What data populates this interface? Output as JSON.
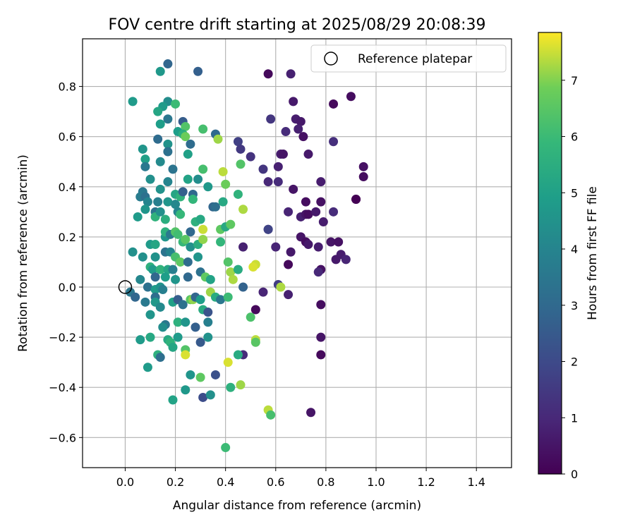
{
  "chart_data": {
    "type": "scatter",
    "title": "FOV centre drift starting at 2025/08/29 20:08:39",
    "xlabel": "Angular distance from reference (arcmin)",
    "ylabel": "Rotation from reference (arcmin)",
    "xlim": [
      -0.17,
      1.54
    ],
    "ylim": [
      -0.72,
      0.99
    ],
    "xticks": [
      0.0,
      0.2,
      0.4,
      0.6,
      0.8,
      1.0,
      1.2,
      1.4
    ],
    "xtick_labels": [
      "0.0",
      "0.2",
      "0.4",
      "0.6",
      "0.8",
      "1.0",
      "1.2",
      "1.4"
    ],
    "yticks": [
      -0.6,
      -0.4,
      -0.2,
      0.0,
      0.2,
      0.4,
      0.6,
      0.8
    ],
    "ytick_labels": [
      "−0.6",
      "−0.4",
      "−0.2",
      "0.0",
      "0.2",
      "0.4",
      "0.6",
      "0.8"
    ],
    "grid": true,
    "legend": {
      "placement": "top-right",
      "label": "Reference platepar"
    },
    "reference_point": {
      "x": 0.0,
      "y": 0.0
    },
    "colorbar": {
      "label": "Hours from first FF file",
      "min": 0,
      "max": 7.85,
      "ticks": [
        0,
        1,
        2,
        3,
        4,
        5,
        6,
        7
      ],
      "tick_labels": [
        "0",
        "1",
        "2",
        "3",
        "4",
        "5",
        "6",
        "7"
      ],
      "colormap": "viridis"
    },
    "points": [
      {
        "x": 0.57,
        "y": 0.85,
        "h": 0.2
      },
      {
        "x": 0.66,
        "y": 0.85,
        "h": 0.8
      },
      {
        "x": 0.9,
        "y": 0.76,
        "h": 0.3
      },
      {
        "x": 0.67,
        "y": 0.74,
        "h": 0.6
      },
      {
        "x": 0.83,
        "y": 0.73,
        "h": 0.2
      },
      {
        "x": 0.58,
        "y": 0.67,
        "h": 1.4
      },
      {
        "x": 0.68,
        "y": 0.67,
        "h": 0.7
      },
      {
        "x": 0.7,
        "y": 0.66,
        "h": 0.6
      },
      {
        "x": 0.64,
        "y": 0.62,
        "h": 1.1
      },
      {
        "x": 0.69,
        "y": 0.63,
        "h": 0.8
      },
      {
        "x": 0.71,
        "y": 0.6,
        "h": 0.4
      },
      {
        "x": 0.83,
        "y": 0.58,
        "h": 1.2
      },
      {
        "x": 0.62,
        "y": 0.53,
        "h": 0.7
      },
      {
        "x": 0.63,
        "y": 0.53,
        "h": 0.5
      },
      {
        "x": 0.73,
        "y": 0.53,
        "h": 0.6
      },
      {
        "x": 0.5,
        "y": 0.52,
        "h": 1.3
      },
      {
        "x": 0.45,
        "y": 0.58,
        "h": 1.7
      },
      {
        "x": 0.46,
        "y": 0.55,
        "h": 1.5
      },
      {
        "x": 0.55,
        "y": 0.47,
        "h": 1.4
      },
      {
        "x": 0.61,
        "y": 0.48,
        "h": 0.8
      },
      {
        "x": 0.95,
        "y": 0.48,
        "h": 0.4
      },
      {
        "x": 0.95,
        "y": 0.44,
        "h": 0.3
      },
      {
        "x": 0.57,
        "y": 0.42,
        "h": 1.0
      },
      {
        "x": 0.61,
        "y": 0.42,
        "h": 1.1
      },
      {
        "x": 0.78,
        "y": 0.42,
        "h": 0.7
      },
      {
        "x": 0.67,
        "y": 0.39,
        "h": 0.5
      },
      {
        "x": 0.92,
        "y": 0.35,
        "h": 0.2
      },
      {
        "x": 0.92,
        "y": 0.35,
        "h": 0.0
      },
      {
        "x": 0.72,
        "y": 0.34,
        "h": 0.3
      },
      {
        "x": 0.78,
        "y": 0.34,
        "h": 0.4
      },
      {
        "x": 0.65,
        "y": 0.3,
        "h": 0.9
      },
      {
        "x": 0.7,
        "y": 0.28,
        "h": 0.8
      },
      {
        "x": 0.72,
        "y": 0.29,
        "h": 0.5
      },
      {
        "x": 0.73,
        "y": 0.29,
        "h": 0.3
      },
      {
        "x": 0.76,
        "y": 0.3,
        "h": 0.6
      },
      {
        "x": 0.83,
        "y": 0.3,
        "h": 1.1
      },
      {
        "x": 0.79,
        "y": 0.26,
        "h": 0.7
      },
      {
        "x": 0.57,
        "y": 0.23,
        "h": 1.5
      },
      {
        "x": 0.57,
        "y": 0.23,
        "h": 1.8
      },
      {
        "x": 0.7,
        "y": 0.2,
        "h": 0.5
      },
      {
        "x": 0.72,
        "y": 0.18,
        "h": 0.3
      },
      {
        "x": 0.73,
        "y": 0.17,
        "h": 0.6
      },
      {
        "x": 0.82,
        "y": 0.18,
        "h": 0.5
      },
      {
        "x": 0.85,
        "y": 0.18,
        "h": 0.4
      },
      {
        "x": 0.86,
        "y": 0.13,
        "h": 0.7
      },
      {
        "x": 0.84,
        "y": 0.11,
        "h": 0.6
      },
      {
        "x": 0.88,
        "y": 0.11,
        "h": 0.9
      },
      {
        "x": 0.6,
        "y": 0.16,
        "h": 0.9
      },
      {
        "x": 0.66,
        "y": 0.14,
        "h": 0.6
      },
      {
        "x": 0.65,
        "y": 0.09,
        "h": 0.2
      },
      {
        "x": 0.77,
        "y": 0.16,
        "h": 0.7
      },
      {
        "x": 0.78,
        "y": 0.07,
        "h": 0.4
      },
      {
        "x": 0.77,
        "y": 0.06,
        "h": 1.0
      },
      {
        "x": 0.47,
        "y": 0.16,
        "h": 0.8
      },
      {
        "x": 0.61,
        "y": 0.01,
        "h": 1.6
      },
      {
        "x": 0.55,
        "y": -0.02,
        "h": 0.9
      },
      {
        "x": 0.65,
        "y": -0.03,
        "h": 0.8
      },
      {
        "x": 0.52,
        "y": -0.09,
        "h": 0.2
      },
      {
        "x": 0.78,
        "y": -0.07,
        "h": 0.3
      },
      {
        "x": 0.78,
        "y": -0.2,
        "h": 0.5
      },
      {
        "x": 0.78,
        "y": -0.27,
        "h": 0.2
      },
      {
        "x": 0.47,
        "y": -0.27,
        "h": 1.1
      },
      {
        "x": 0.74,
        "y": -0.5,
        "h": 0.5
      },
      {
        "x": 0.47,
        "y": 0.0,
        "h": 2.8
      },
      {
        "x": 0.36,
        "y": -0.35,
        "h": 2.2
      },
      {
        "x": 0.31,
        "y": -0.44,
        "h": 2.1
      },
      {
        "x": 0.17,
        "y": 0.89,
        "h": 2.9
      },
      {
        "x": 0.29,
        "y": 0.86,
        "h": 2.7
      },
      {
        "x": 0.14,
        "y": 0.86,
        "h": 4.7
      },
      {
        "x": 0.03,
        "y": 0.74,
        "h": 4.8
      },
      {
        "x": 0.17,
        "y": 0.74,
        "h": 4.3
      },
      {
        "x": 0.2,
        "y": 0.73,
        "h": 6.0
      },
      {
        "x": 0.15,
        "y": 0.72,
        "h": 4.8
      },
      {
        "x": 0.13,
        "y": 0.7,
        "h": 5.2
      },
      {
        "x": 0.17,
        "y": 0.67,
        "h": 3.5
      },
      {
        "x": 0.23,
        "y": 0.66,
        "h": 2.6
      },
      {
        "x": 0.24,
        "y": 0.64,
        "h": 6.4
      },
      {
        "x": 0.14,
        "y": 0.65,
        "h": 4.9
      },
      {
        "x": 0.21,
        "y": 0.62,
        "h": 4.9
      },
      {
        "x": 0.23,
        "y": 0.61,
        "h": 5.5
      },
      {
        "x": 0.24,
        "y": 0.6,
        "h": 6.8
      },
      {
        "x": 0.31,
        "y": 0.63,
        "h": 6.2
      },
      {
        "x": 0.36,
        "y": 0.61,
        "h": 3.0
      },
      {
        "x": 0.37,
        "y": 0.59,
        "h": 7.2
      },
      {
        "x": 0.13,
        "y": 0.59,
        "h": 3.1
      },
      {
        "x": 0.17,
        "y": 0.57,
        "h": 4.5
      },
      {
        "x": 0.26,
        "y": 0.57,
        "h": 3.1
      },
      {
        "x": 0.07,
        "y": 0.55,
        "h": 4.6
      },
      {
        "x": 0.17,
        "y": 0.54,
        "h": 3.3
      },
      {
        "x": 0.25,
        "y": 0.53,
        "h": 5.0
      },
      {
        "x": 0.08,
        "y": 0.51,
        "h": 5.0
      },
      {
        "x": 0.14,
        "y": 0.5,
        "h": 4.2
      },
      {
        "x": 0.08,
        "y": 0.48,
        "h": 3.6
      },
      {
        "x": 0.19,
        "y": 0.47,
        "h": 3.4
      },
      {
        "x": 0.46,
        "y": 0.49,
        "h": 6.4
      },
      {
        "x": 0.31,
        "y": 0.47,
        "h": 6.2
      },
      {
        "x": 0.39,
        "y": 0.46,
        "h": 7.4
      },
      {
        "x": 0.1,
        "y": 0.43,
        "h": 4.4
      },
      {
        "x": 0.17,
        "y": 0.42,
        "h": 4.0
      },
      {
        "x": 0.25,
        "y": 0.43,
        "h": 5.1
      },
      {
        "x": 0.29,
        "y": 0.43,
        "h": 4.3
      },
      {
        "x": 0.4,
        "y": 0.41,
        "h": 6.8
      },
      {
        "x": 0.14,
        "y": 0.39,
        "h": 4.5
      },
      {
        "x": 0.07,
        "y": 0.38,
        "h": 3.6
      },
      {
        "x": 0.06,
        "y": 0.36,
        "h": 3.7
      },
      {
        "x": 0.08,
        "y": 0.36,
        "h": 3.3
      },
      {
        "x": 0.2,
        "y": 0.37,
        "h": 5.2
      },
      {
        "x": 0.22,
        "y": 0.36,
        "h": 5.7
      },
      {
        "x": 0.23,
        "y": 0.38,
        "h": 2.7
      },
      {
        "x": 0.27,
        "y": 0.37,
        "h": 3.0
      },
      {
        "x": 0.33,
        "y": 0.4,
        "h": 4.7
      },
      {
        "x": 0.45,
        "y": 0.37,
        "h": 5.7
      },
      {
        "x": 0.09,
        "y": 0.34,
        "h": 4.0
      },
      {
        "x": 0.13,
        "y": 0.34,
        "h": 3.8
      },
      {
        "x": 0.17,
        "y": 0.34,
        "h": 4.6
      },
      {
        "x": 0.2,
        "y": 0.33,
        "h": 4.1
      },
      {
        "x": 0.27,
        "y": 0.35,
        "h": 5.8
      },
      {
        "x": 0.35,
        "y": 0.32,
        "h": 2.9
      },
      {
        "x": 0.36,
        "y": 0.32,
        "h": 3.2
      },
      {
        "x": 0.39,
        "y": 0.34,
        "h": 5.3
      },
      {
        "x": 0.47,
        "y": 0.31,
        "h": 7.3
      },
      {
        "x": 0.05,
        "y": 0.28,
        "h": 4.8
      },
      {
        "x": 0.08,
        "y": 0.31,
        "h": 4.6
      },
      {
        "x": 0.12,
        "y": 0.3,
        "h": 3.4
      },
      {
        "x": 0.12,
        "y": 0.28,
        "h": 5.7
      },
      {
        "x": 0.14,
        "y": 0.3,
        "h": 4.4
      },
      {
        "x": 0.16,
        "y": 0.27,
        "h": 5.5
      },
      {
        "x": 0.21,
        "y": 0.3,
        "h": 4.0
      },
      {
        "x": 0.22,
        "y": 0.29,
        "h": 5.9
      },
      {
        "x": 0.26,
        "y": 0.22,
        "h": 3.0
      },
      {
        "x": 0.28,
        "y": 0.26,
        "h": 5.6
      },
      {
        "x": 0.3,
        "y": 0.27,
        "h": 5.3
      },
      {
        "x": 0.31,
        "y": 0.23,
        "h": 7.5
      },
      {
        "x": 0.38,
        "y": 0.23,
        "h": 6.6
      },
      {
        "x": 0.4,
        "y": 0.24,
        "h": 5.3
      },
      {
        "x": 0.42,
        "y": 0.25,
        "h": 6.6
      },
      {
        "x": 0.1,
        "y": 0.17,
        "h": 4.8
      },
      {
        "x": 0.12,
        "y": 0.17,
        "h": 5.2
      },
      {
        "x": 0.16,
        "y": 0.2,
        "h": 4.6
      },
      {
        "x": 0.16,
        "y": 0.22,
        "h": 5.6
      },
      {
        "x": 0.18,
        "y": 0.21,
        "h": 3.6
      },
      {
        "x": 0.2,
        "y": 0.22,
        "h": 6.4
      },
      {
        "x": 0.21,
        "y": 0.21,
        "h": 6.1
      },
      {
        "x": 0.23,
        "y": 0.18,
        "h": 5.9
      },
      {
        "x": 0.24,
        "y": 0.19,
        "h": 6.5
      },
      {
        "x": 0.26,
        "y": 0.16,
        "h": 4.5
      },
      {
        "x": 0.29,
        "y": 0.17,
        "h": 5.5
      },
      {
        "x": 0.31,
        "y": 0.19,
        "h": 7.1
      },
      {
        "x": 0.38,
        "y": 0.18,
        "h": 5.8
      },
      {
        "x": 0.03,
        "y": 0.14,
        "h": 4.4
      },
      {
        "x": 0.07,
        "y": 0.12,
        "h": 4.4
      },
      {
        "x": 0.12,
        "y": 0.12,
        "h": 4.5
      },
      {
        "x": 0.16,
        "y": 0.14,
        "h": 3.4
      },
      {
        "x": 0.18,
        "y": 0.14,
        "h": 4.0
      },
      {
        "x": 0.2,
        "y": 0.12,
        "h": 6.2
      },
      {
        "x": 0.22,
        "y": 0.1,
        "h": 6.6
      },
      {
        "x": 0.25,
        "y": 0.1,
        "h": 3.1
      },
      {
        "x": 0.29,
        "y": 0.12,
        "h": 4.6
      },
      {
        "x": 0.41,
        "y": 0.1,
        "h": 6.4
      },
      {
        "x": 0.52,
        "y": 0.09,
        "h": 7.5
      },
      {
        "x": 0.1,
        "y": 0.08,
        "h": 5.6
      },
      {
        "x": 0.11,
        "y": 0.07,
        "h": 4.8
      },
      {
        "x": 0.14,
        "y": 0.07,
        "h": 5.7
      },
      {
        "x": 0.17,
        "y": 0.07,
        "h": 5.2
      },
      {
        "x": 0.19,
        "y": 0.07,
        "h": 3.8
      },
      {
        "x": 0.3,
        "y": 0.06,
        "h": 3.3
      },
      {
        "x": 0.42,
        "y": 0.06,
        "h": 7.2
      },
      {
        "x": 0.45,
        "y": 0.07,
        "h": 5.4
      },
      {
        "x": 0.51,
        "y": 0.08,
        "h": 7.6
      },
      {
        "x": 0.06,
        "y": 0.03,
        "h": 4.1
      },
      {
        "x": 0.12,
        "y": 0.04,
        "h": 2.9
      },
      {
        "x": 0.16,
        "y": 0.04,
        "h": 4.9
      },
      {
        "x": 0.2,
        "y": 0.03,
        "h": 4.6
      },
      {
        "x": 0.25,
        "y": 0.04,
        "h": 3.0
      },
      {
        "x": 0.32,
        "y": 0.04,
        "h": 6.6
      },
      {
        "x": 0.34,
        "y": 0.03,
        "h": 5.1
      },
      {
        "x": 0.43,
        "y": 0.03,
        "h": 7.3
      },
      {
        "x": 0.02,
        "y": -0.02,
        "h": 3.5
      },
      {
        "x": 0.04,
        "y": -0.04,
        "h": 2.9
      },
      {
        "x": 0.09,
        "y": 0.0,
        "h": 3.3
      },
      {
        "x": 0.12,
        "y": -0.01,
        "h": 4.8
      },
      {
        "x": 0.14,
        "y": 0.0,
        "h": 4.5
      },
      {
        "x": 0.15,
        "y": -0.01,
        "h": 3.8
      },
      {
        "x": 0.08,
        "y": -0.06,
        "h": 3.6
      },
      {
        "x": 0.12,
        "y": -0.04,
        "h": 3.2
      },
      {
        "x": 0.12,
        "y": -0.06,
        "h": 4.7
      },
      {
        "x": 0.14,
        "y": -0.08,
        "h": 4.2
      },
      {
        "x": 0.19,
        "y": -0.06,
        "h": 5.0
      },
      {
        "x": 0.21,
        "y": -0.05,
        "h": 2.6
      },
      {
        "x": 0.23,
        "y": -0.07,
        "h": 3.3
      },
      {
        "x": 0.26,
        "y": -0.05,
        "h": 6.5
      },
      {
        "x": 0.27,
        "y": -0.05,
        "h": 7.1
      },
      {
        "x": 0.28,
        "y": -0.04,
        "h": 2.9
      },
      {
        "x": 0.3,
        "y": -0.05,
        "h": 4.9
      },
      {
        "x": 0.34,
        "y": -0.02,
        "h": 7.2
      },
      {
        "x": 0.36,
        "y": -0.04,
        "h": 5.4
      },
      {
        "x": 0.38,
        "y": -0.05,
        "h": 3.5
      },
      {
        "x": 0.41,
        "y": -0.04,
        "h": 6.0
      },
      {
        "x": 0.62,
        "y": 0.0,
        "h": 7.3
      },
      {
        "x": 0.31,
        "y": -0.09,
        "h": 5.4
      },
      {
        "x": 0.33,
        "y": -0.1,
        "h": 2.3
      },
      {
        "x": 0.1,
        "y": -0.11,
        "h": 4.6
      },
      {
        "x": 0.16,
        "y": -0.15,
        "h": 3.5
      },
      {
        "x": 0.21,
        "y": -0.14,
        "h": 5.6
      },
      {
        "x": 0.24,
        "y": -0.14,
        "h": 4.6
      },
      {
        "x": 0.28,
        "y": -0.16,
        "h": 2.7
      },
      {
        "x": 0.33,
        "y": -0.14,
        "h": 3.8
      },
      {
        "x": 0.5,
        "y": -0.12,
        "h": 6.3
      },
      {
        "x": 0.15,
        "y": -0.16,
        "h": 4.3
      },
      {
        "x": 0.1,
        "y": -0.2,
        "h": 5.3
      },
      {
        "x": 0.06,
        "y": -0.21,
        "h": 4.8
      },
      {
        "x": 0.17,
        "y": -0.21,
        "h": 5.3
      },
      {
        "x": 0.18,
        "y": -0.22,
        "h": 5.7
      },
      {
        "x": 0.21,
        "y": -0.2,
        "h": 4.8
      },
      {
        "x": 0.3,
        "y": -0.22,
        "h": 2.5
      },
      {
        "x": 0.33,
        "y": -0.2,
        "h": 4.5
      },
      {
        "x": 0.52,
        "y": -0.21,
        "h": 7.4
      },
      {
        "x": 0.52,
        "y": -0.22,
        "h": 6.5
      },
      {
        "x": 0.19,
        "y": -0.24,
        "h": 5.2
      },
      {
        "x": 0.24,
        "y": -0.25,
        "h": 6.4
      },
      {
        "x": 0.13,
        "y": -0.27,
        "h": 5.6
      },
      {
        "x": 0.14,
        "y": -0.28,
        "h": 3.2
      },
      {
        "x": 0.24,
        "y": -0.27,
        "h": 7.6
      },
      {
        "x": 0.45,
        "y": -0.27,
        "h": 5.4
      },
      {
        "x": 0.09,
        "y": -0.32,
        "h": 4.8
      },
      {
        "x": 0.26,
        "y": -0.35,
        "h": 4.6
      },
      {
        "x": 0.3,
        "y": -0.36,
        "h": 6.6
      },
      {
        "x": 0.41,
        "y": -0.3,
        "h": 7.6
      },
      {
        "x": 0.46,
        "y": -0.39,
        "h": 7.2
      },
      {
        "x": 0.42,
        "y": -0.4,
        "h": 5.6
      },
      {
        "x": 0.24,
        "y": -0.41,
        "h": 4.7
      },
      {
        "x": 0.34,
        "y": -0.43,
        "h": 4.4
      },
      {
        "x": 0.19,
        "y": -0.45,
        "h": 5.1
      },
      {
        "x": 0.57,
        "y": -0.49,
        "h": 7.4
      },
      {
        "x": 0.58,
        "y": -0.51,
        "h": 6.2
      },
      {
        "x": 0.4,
        "y": -0.64,
        "h": 6.0
      }
    ]
  }
}
